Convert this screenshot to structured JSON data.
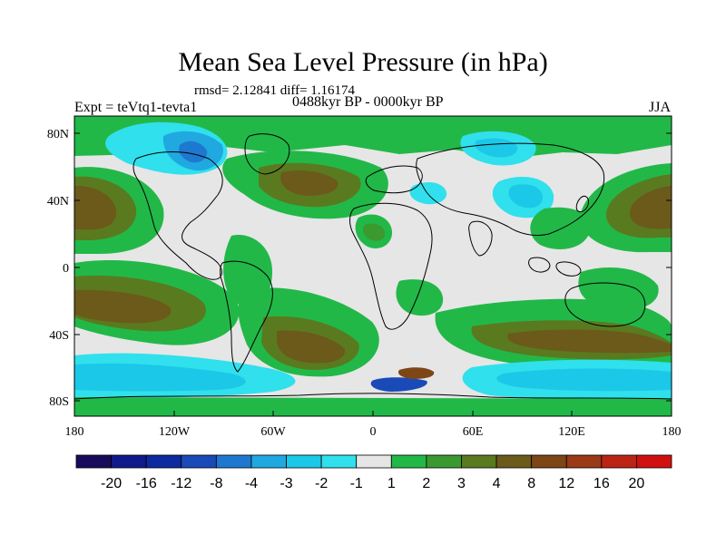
{
  "title": "Mean Sea Level Pressure (in hPa)",
  "stats_line": "rmsd= 2.12841 diff= 1.16174",
  "experiment": "Expt = teVtq1-tevta1",
  "period": "0488kyr BP - 0000kyr BP",
  "season": "JJA",
  "lat_ticks": [
    "80N",
    "40N",
    "0",
    "40S",
    "80S"
  ],
  "lon_ticks": [
    "180",
    "120W",
    "60W",
    "0",
    "60E",
    "120E",
    "180"
  ],
  "colorbar": {
    "labels": [
      "-20",
      "-16",
      "-12",
      "-8",
      "-4",
      "-3",
      "-2",
      "-1",
      "1",
      "2",
      "3",
      "4",
      "8",
      "12",
      "16",
      "20"
    ],
    "colors": [
      "#1a0a5c",
      "#101a8a",
      "#0d2aa0",
      "#1a4ab8",
      "#1f78d0",
      "#20a8e0",
      "#1cc8e8",
      "#30e0ec",
      "#e6e6e6",
      "#22b848",
      "#3a9a30",
      "#5a7a20",
      "#6b5a1a",
      "#7d4616",
      "#9a3a16",
      "#bb2414",
      "#d01010"
    ]
  },
  "chart_data": {
    "type": "heatmap",
    "variable": "Mean Sea Level Pressure difference (hPa)",
    "season": "JJA",
    "lon_range": [
      -180,
      180
    ],
    "lat_range": [
      -90,
      90
    ],
    "levels": [
      -20,
      -16,
      -12,
      -8,
      -4,
      -3,
      -2,
      -1,
      1,
      2,
      3,
      4,
      8,
      12,
      16,
      20
    ]
  }
}
